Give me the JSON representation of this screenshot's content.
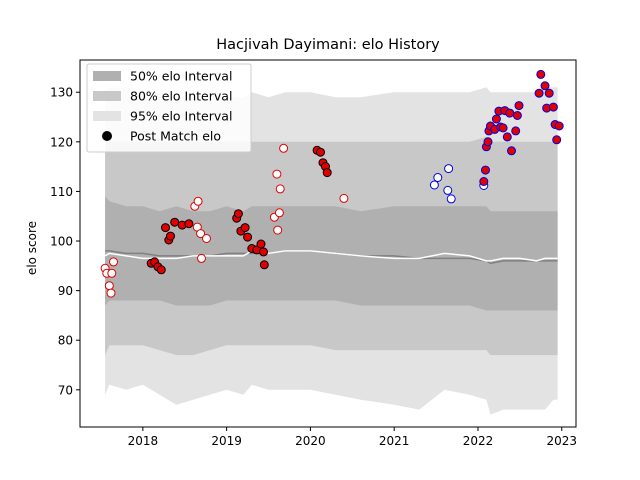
{
  "chart_data": {
    "type": "scatter",
    "title": "Hacjivah Dayimani: elo History",
    "xlabel": "",
    "ylabel": "elo score",
    "xlim": [
      2017.25,
      2023.17
    ],
    "ylim": [
      62.5,
      136.5
    ],
    "x_ticks": [
      2018,
      2019,
      2020,
      2021,
      2022,
      2023
    ],
    "x_tick_labels": [
      "2018",
      "2019",
      "2020",
      "2021",
      "2022",
      "2023"
    ],
    "y_ticks": [
      70,
      80,
      90,
      100,
      110,
      120,
      130
    ],
    "y_tick_labels": [
      "70",
      "80",
      "90",
      "100",
      "110",
      "120",
      "130"
    ],
    "legend_position": "top-left",
    "legend": [
      {
        "label": "50% elo Interval",
        "kind": "band",
        "color": "#b0b0b0"
      },
      {
        "label": "80% elo Interval",
        "kind": "band",
        "color": "#c8c8c8"
      },
      {
        "label": "95% elo Interval",
        "kind": "band",
        "color": "#e3e3e3"
      },
      {
        "label": "Post Match elo",
        "kind": "point",
        "color": "#000000"
      }
    ],
    "colors": {
      "band95": "#e3e3e3",
      "band80": "#c8c8c8",
      "band50": "#b0b0b0",
      "median_line": "#808080",
      "mean_line": "#ffffff",
      "win_face": "#e00000",
      "loss_face": "#ffffff",
      "edge_red": "#e00000",
      "edge_black": "#000000",
      "face_blue": "#e00000",
      "edge_blue": "#0000dd"
    },
    "bands": {
      "x": [
        2017.55,
        2017.6,
        2017.8,
        2018.0,
        2018.2,
        2018.4,
        2018.6,
        2018.8,
        2019.0,
        2019.2,
        2019.3,
        2019.5,
        2019.7,
        2020.0,
        2020.3,
        2020.6,
        2021.0,
        2021.3,
        2021.6,
        2021.9,
        2022.1,
        2022.15,
        2022.3,
        2022.5,
        2022.7,
        2022.8,
        2022.9,
        2022.95
      ],
      "p95_low": [
        69,
        71,
        70,
        71,
        69,
        67,
        68,
        69,
        70,
        69,
        71,
        70,
        70,
        70,
        69,
        68,
        67,
        66,
        70,
        69,
        68,
        65,
        66,
        66,
        66,
        66,
        68,
        68
      ],
      "p95_high": [
        130,
        131,
        131,
        130,
        130,
        129,
        129,
        130,
        129,
        129,
        130,
        129,
        130,
        130,
        129,
        129,
        130,
        130,
        130,
        130,
        131,
        130,
        130,
        130,
        130,
        131,
        131,
        131
      ],
      "p80_low": [
        77,
        79,
        79,
        79,
        78,
        77,
        77,
        78,
        79,
        79,
        79,
        79,
        79,
        79,
        78,
        78,
        78,
        78,
        78,
        78,
        78,
        77,
        77,
        77,
        77,
        77,
        77,
        77
      ],
      "p80_high": [
        121,
        120,
        120,
        120,
        120,
        120,
        120,
        120,
        120,
        120,
        120,
        120,
        120,
        120,
        120,
        120,
        120,
        120,
        120,
        120,
        121,
        120,
        120,
        120,
        120,
        120,
        120,
        120
      ],
      "p50_low": [
        87,
        88,
        88,
        88,
        88,
        87,
        87,
        87,
        88,
        88,
        88,
        88,
        88,
        88,
        88,
        87,
        87,
        87,
        87,
        87,
        86,
        86,
        86,
        86,
        86,
        86,
        86,
        86
      ],
      "p50_high": [
        109,
        108,
        107,
        107,
        106,
        107,
        106,
        106,
        107,
        106,
        107,
        107,
        107,
        107,
        107,
        106,
        107,
        107,
        107,
        107,
        107,
        106,
        106,
        106,
        106,
        106,
        106,
        106
      ],
      "median": [
        98,
        98,
        97.5,
        97.5,
        97,
        97,
        97,
        97,
        97.5,
        97.5,
        97.5,
        97.5,
        98,
        98,
        97.5,
        97,
        97,
        96.5,
        96.5,
        96.5,
        96,
        95.5,
        96,
        96,
        96,
        96,
        96,
        96
      ],
      "mean": [
        97,
        97.5,
        97,
        96.5,
        96.5,
        96.5,
        97,
        97,
        97,
        97,
        98,
        97.5,
        98,
        98,
        97.5,
        97,
        96.5,
        96.5,
        97.5,
        97,
        96,
        96,
        96.5,
        96.5,
        96,
        96.5,
        96.5,
        96.5
      ]
    },
    "series": [
      {
        "marker": "red-edge-white",
        "points": [
          [
            2017.55,
            94.5
          ],
          [
            2017.57,
            93.5
          ],
          [
            2017.6,
            91
          ],
          [
            2017.62,
            89.5
          ],
          [
            2017.63,
            93.5
          ],
          [
            2017.65,
            95.8
          ],
          [
            2018.62,
            107
          ],
          [
            2018.66,
            108
          ],
          [
            2018.65,
            102.8
          ],
          [
            2018.69,
            101.5
          ],
          [
            2018.7,
            96.5
          ],
          [
            2018.76,
            100.5
          ],
          [
            2019.57,
            104.8
          ],
          [
            2019.6,
            113.5
          ],
          [
            2019.61,
            102.2
          ],
          [
            2019.63,
            105.7
          ],
          [
            2019.64,
            110.5
          ],
          [
            2019.68,
            118.7
          ],
          [
            2020.4,
            108.6
          ]
        ]
      },
      {
        "marker": "black-edge-red",
        "points": [
          [
            2018.1,
            95.5
          ],
          [
            2018.14,
            95.8
          ],
          [
            2018.18,
            94.8
          ],
          [
            2018.22,
            94.2
          ],
          [
            2018.27,
            102.7
          ],
          [
            2018.31,
            100.2
          ],
          [
            2018.33,
            101
          ],
          [
            2018.38,
            103.8
          ],
          [
            2018.47,
            103.2
          ],
          [
            2018.55,
            103.5
          ],
          [
            2019.12,
            104.6
          ],
          [
            2019.14,
            105.5
          ],
          [
            2019.17,
            102
          ],
          [
            2019.22,
            102.7
          ],
          [
            2019.25,
            100.8
          ],
          [
            2019.3,
            98.5
          ],
          [
            2019.36,
            98.2
          ],
          [
            2019.41,
            99.4
          ],
          [
            2019.44,
            97.8
          ],
          [
            2019.45,
            95.2
          ],
          [
            2020.08,
            118.3
          ],
          [
            2020.12,
            117.9
          ],
          [
            2020.15,
            115.8
          ],
          [
            2020.18,
            115
          ],
          [
            2020.2,
            113.8
          ]
        ]
      },
      {
        "marker": "blue-edge-white",
        "points": [
          [
            2021.48,
            111.3
          ],
          [
            2021.52,
            112.8
          ],
          [
            2021.65,
            114.6
          ],
          [
            2021.64,
            110.2
          ],
          [
            2021.68,
            108.5
          ],
          [
            2022.07,
            111.2
          ]
        ]
      },
      {
        "marker": "blue-edge-red",
        "points": [
          [
            2022.07,
            112
          ],
          [
            2022.09,
            114.3
          ],
          [
            2022.1,
            119
          ],
          [
            2022.12,
            120
          ],
          [
            2022.13,
            122.2
          ],
          [
            2022.15,
            123.2
          ],
          [
            2022.2,
            122.5
          ],
          [
            2022.22,
            124.6
          ],
          [
            2022.25,
            126.2
          ],
          [
            2022.27,
            123
          ],
          [
            2022.3,
            122.8
          ],
          [
            2022.32,
            126.3
          ],
          [
            2022.35,
            121
          ],
          [
            2022.38,
            125.8
          ],
          [
            2022.4,
            118.2
          ],
          [
            2022.45,
            122.2
          ],
          [
            2022.47,
            125.3
          ],
          [
            2022.49,
            127.3
          ],
          [
            2022.73,
            129.8
          ],
          [
            2022.75,
            133.6
          ],
          [
            2022.8,
            131.3
          ],
          [
            2022.82,
            126.8
          ],
          [
            2022.85,
            129.8
          ],
          [
            2022.9,
            127
          ],
          [
            2022.92,
            123.5
          ],
          [
            2022.94,
            120.4
          ],
          [
            2022.97,
            123.2
          ]
        ]
      }
    ]
  }
}
